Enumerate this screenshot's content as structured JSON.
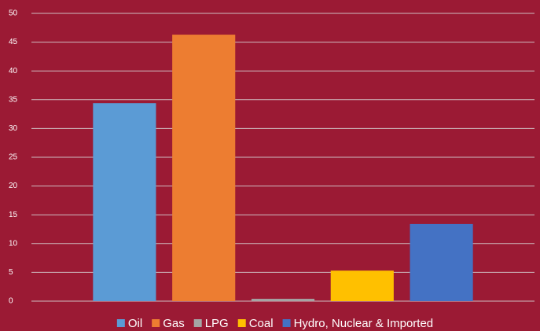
{
  "chart_data": {
    "type": "bar",
    "categories": [
      null
    ],
    "series": [
      {
        "name": "Oil",
        "color": "#5b9bd5",
        "values": [
          34.4
        ]
      },
      {
        "name": "Gas",
        "color": "#ed7d31",
        "values": [
          46.3
        ]
      },
      {
        "name": "LPG",
        "color": "#a5a5a5",
        "values": [
          0.4
        ]
      },
      {
        "name": "Coal",
        "color": "#ffc000",
        "values": [
          5.3
        ]
      },
      {
        "name": "Hydro, Nuclear & Imported",
        "color": "#4472c4",
        "values": [
          13.4
        ]
      }
    ],
    "ylim": [
      0,
      50
    ],
    "yticks": [
      0,
      5,
      10,
      15,
      20,
      25,
      30,
      35,
      40,
      45,
      50
    ],
    "grid": true,
    "legend": "bottom"
  }
}
